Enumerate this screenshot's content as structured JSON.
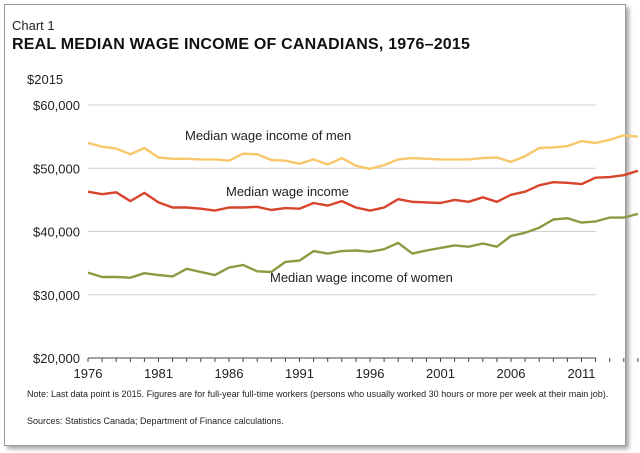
{
  "chart_label": "Chart 1",
  "chart_data": {
    "type": "line",
    "title": "REAL MEDIAN WAGE INCOME OF CANADIANS, 1976–2015",
    "ylabel": "$2015",
    "xlabel": "",
    "ylim": [
      20000,
      60000
    ],
    "xlim": [
      1976,
      2015
    ],
    "y_ticks": [
      20000,
      30000,
      40000,
      50000,
      60000
    ],
    "y_tick_labels": [
      "$20,000",
      "$30,000",
      "$40,000",
      "$50,000",
      "$60,000"
    ],
    "x_ticks": [
      1976,
      1981,
      1986,
      1991,
      1996,
      2001,
      2006,
      2011
    ],
    "x_tick_labels": [
      "1976",
      "1981",
      "1986",
      "1991",
      "1996",
      "2001",
      "2006",
      "2011"
    ],
    "grid": true,
    "x": [
      1976,
      1977,
      1978,
      1979,
      1980,
      1981,
      1982,
      1983,
      1984,
      1985,
      1986,
      1987,
      1988,
      1989,
      1990,
      1991,
      1992,
      1993,
      1994,
      1995,
      1996,
      1997,
      1998,
      1999,
      2000,
      2001,
      2002,
      2003,
      2004,
      2005,
      2006,
      2007,
      2008,
      2009,
      2010,
      2011,
      2012,
      2013,
      2014,
      2015
    ],
    "series": [
      {
        "name": "Median wage income of men",
        "color": "#f7c76a",
        "values": [
          54000,
          53400,
          53100,
          52200,
          53200,
          51700,
          51500,
          51500,
          51400,
          51400,
          51200,
          52300,
          52200,
          51300,
          51200,
          50700,
          51400,
          50600,
          51600,
          50400,
          49900,
          50500,
          51400,
          51600,
          51500,
          51400,
          51400,
          51400,
          51600,
          51700,
          51000,
          51900,
          53200,
          53300,
          53500,
          54300,
          54000,
          54500,
          55200,
          55000
        ]
      },
      {
        "name": "Median wage income",
        "color": "#d9452c",
        "values": [
          46300,
          45900,
          46200,
          44800,
          46100,
          44600,
          43800,
          43800,
          43600,
          43300,
          43800,
          43800,
          43900,
          43400,
          43700,
          43600,
          44500,
          44100,
          44800,
          43800,
          43300,
          43800,
          45100,
          44700,
          44600,
          44500,
          45000,
          44700,
          45400,
          44700,
          45800,
          46300,
          47300,
          47800,
          47700,
          47500,
          48500,
          48600,
          48900,
          49600
        ]
      },
      {
        "name": "Median wage income of women",
        "color": "#8c9a42",
        "values": [
          33500,
          32800,
          32800,
          32700,
          33400,
          33100,
          32900,
          34100,
          33600,
          33100,
          34300,
          34700,
          33700,
          33600,
          35200,
          35400,
          36900,
          36500,
          36900,
          37000,
          36800,
          37200,
          38200,
          36500,
          37000,
          37400,
          37800,
          37600,
          38100,
          37600,
          39300,
          39800,
          40600,
          41900,
          42100,
          41400,
          41600,
          42200,
          42200,
          42800
        ]
      }
    ],
    "annotations": [
      {
        "text": "Median wage income of men",
        "series": 0
      },
      {
        "text": "Median wage income",
        "series": 1
      },
      {
        "text": "Median wage income of women",
        "series": 2
      }
    ]
  },
  "note": "Note: Last data point is 2015. Figures are for full-year full-time workers (persons who usually worked 30 hours or more per week at their main job).",
  "sources": "Sources: Statistics Canada; Department of Finance calculations."
}
